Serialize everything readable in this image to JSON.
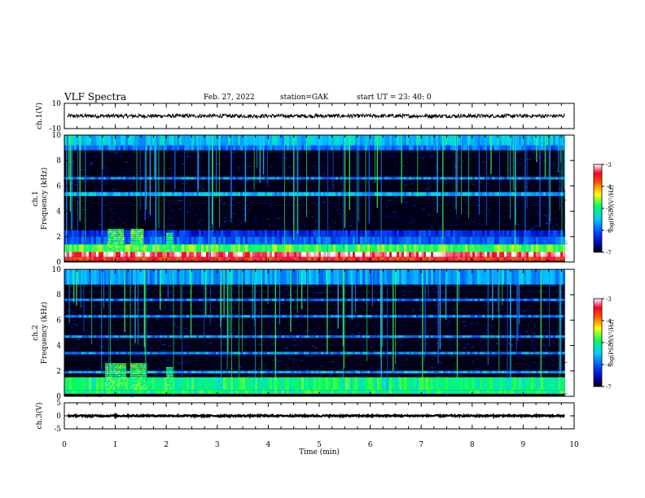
{
  "header": {
    "title": "VLF Spectra",
    "date": "Feb. 27, 2022",
    "station": "station=GAK",
    "start": "start  UT =   23: 40: 0"
  },
  "chart_data": [
    {
      "type": "line",
      "panel": "ch1-waveform",
      "ylabel": "ch.1(V)",
      "ylim": [
        -10,
        10
      ],
      "yticks": [
        "10",
        "-10"
      ],
      "xlim": [
        0,
        10
      ],
      "series": [
        {
          "mean": 0,
          "amplitude": 1.5,
          "color": "#000000"
        }
      ]
    },
    {
      "type": "heatmap",
      "panel": "ch1-spectrogram",
      "ylabel": "ch.1\nFrequency (kHz)",
      "ylim": [
        0,
        10
      ],
      "yticks": [
        "0",
        "2",
        "4",
        "6",
        "8",
        "10"
      ],
      "xlim": [
        0,
        9.82
      ],
      "colorbar": {
        "label": "log(PSD)(V²/Hz)",
        "range": [
          -7,
          -3
        ],
        "ticks": [
          "-3",
          "-4",
          "-5",
          "-6",
          "-7"
        ]
      },
      "bands": [
        {
          "f_range": [
            0.1,
            0.4
          ],
          "level": -3.6
        },
        {
          "f_range": [
            0.4,
            0.8
          ],
          "level": -3.2
        },
        {
          "f_range": [
            0.8,
            1.4
          ],
          "level": -4.8
        },
        {
          "f_range": [
            1.4,
            2.0
          ],
          "level": -6.0
        },
        {
          "f_range": [
            2.0,
            2.5
          ],
          "level": -6.3
        },
        {
          "f_range": [
            5.2,
            5.5
          ],
          "level": -5.6
        },
        {
          "f_range": [
            6.5,
            6.7
          ],
          "level": -5.8
        },
        {
          "f_range": [
            8.8,
            9.2
          ],
          "level": -5.9
        },
        {
          "f_range": [
            9.2,
            10.0
          ],
          "level": -5.5
        }
      ],
      "bursts": [
        {
          "t_range": [
            0.85,
            1.15
          ],
          "f_range": [
            0.8,
            2.5
          ],
          "level": -4.8
        },
        {
          "t_range": [
            1.3,
            1.55
          ],
          "f_range": [
            0.8,
            2.5
          ],
          "level": -4.8
        },
        {
          "t_range": [
            2.0,
            2.1
          ],
          "f_range": [
            0.8,
            2.2
          ],
          "level": -4.9
        }
      ]
    },
    {
      "type": "heatmap",
      "panel": "ch2-spectrogram",
      "ylabel": "ch.2\nFrequency (kHz)",
      "ylim": [
        0,
        10
      ],
      "yticks": [
        "0",
        "2",
        "4",
        "6",
        "8",
        "10"
      ],
      "xlim": [
        0,
        9.82
      ],
      "colorbar": {
        "label": "log(PSD)(V²/Hz)",
        "range": [
          -7,
          -3
        ],
        "ticks": [
          "-3",
          "-4",
          "-5",
          "-6",
          "-7"
        ]
      },
      "bands": [
        {
          "f_range": [
            0.2,
            0.5
          ],
          "level": -5.0
        },
        {
          "f_range": [
            0.5,
            1.5
          ],
          "level": -5.0
        },
        {
          "f_range": [
            1.8,
            2.0
          ],
          "level": -5.7
        },
        {
          "f_range": [
            3.3,
            3.5
          ],
          "level": -5.8
        },
        {
          "f_range": [
            4.6,
            4.8
          ],
          "level": -5.8
        },
        {
          "f_range": [
            6.2,
            6.4
          ],
          "level": -5.8
        },
        {
          "f_range": [
            7.5,
            7.7
          ],
          "level": -5.9
        },
        {
          "f_range": [
            8.8,
            10.0
          ],
          "level": -5.7
        }
      ],
      "bursts": [
        {
          "t_range": [
            0.8,
            1.2
          ],
          "f_range": [
            0.5,
            2.5
          ],
          "level": -4.9
        },
        {
          "t_range": [
            1.3,
            1.6
          ],
          "f_range": [
            0.5,
            2.5
          ],
          "level": -4.9
        },
        {
          "t_range": [
            2.0,
            2.1
          ],
          "f_range": [
            0.5,
            2.2
          ],
          "level": -5.0
        }
      ]
    },
    {
      "type": "line",
      "panel": "ch3-waveform",
      "ylabel": "ch.3(V)",
      "ylim": [
        -5,
        5
      ],
      "yticks": [
        "5",
        "0",
        "-5"
      ],
      "xlim": [
        0,
        10
      ],
      "xticks": [
        "0",
        "1",
        "2",
        "3",
        "4",
        "5",
        "6",
        "7",
        "8",
        "9",
        "10"
      ],
      "xlabel": "Time  (min)",
      "series": [
        {
          "mean": 0,
          "amplitude": 0.3,
          "color": "#000000"
        }
      ]
    }
  ]
}
